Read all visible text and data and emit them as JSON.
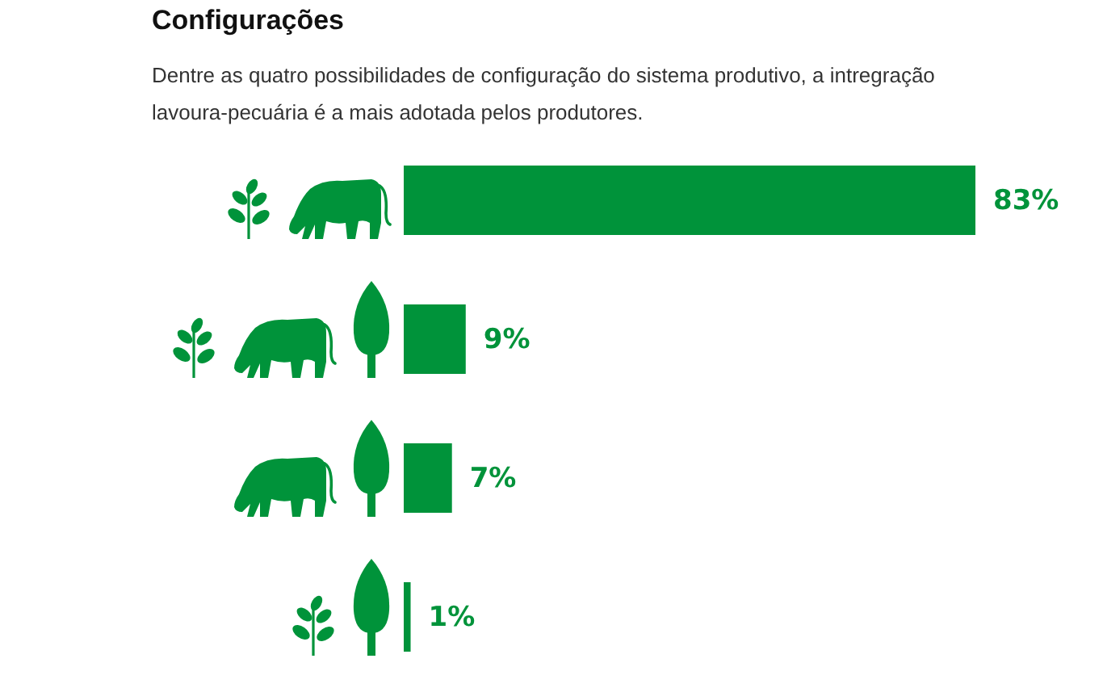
{
  "chart_data": {
    "type": "bar",
    "title": "Configurações",
    "subtitle": "Dentre as quatro possibilidades de configuração do sistema produtivo, a intregração lavoura-pecuária é a mais adotada pelos produtores.",
    "orientation": "horizontal",
    "categories": [
      null,
      null,
      null,
      null
    ],
    "values": [
      83,
      9,
      7,
      1
    ],
    "color": "#00933a",
    "value_labels": [
      "83%",
      "9%",
      "7%",
      "1%"
    ]
  }
}
